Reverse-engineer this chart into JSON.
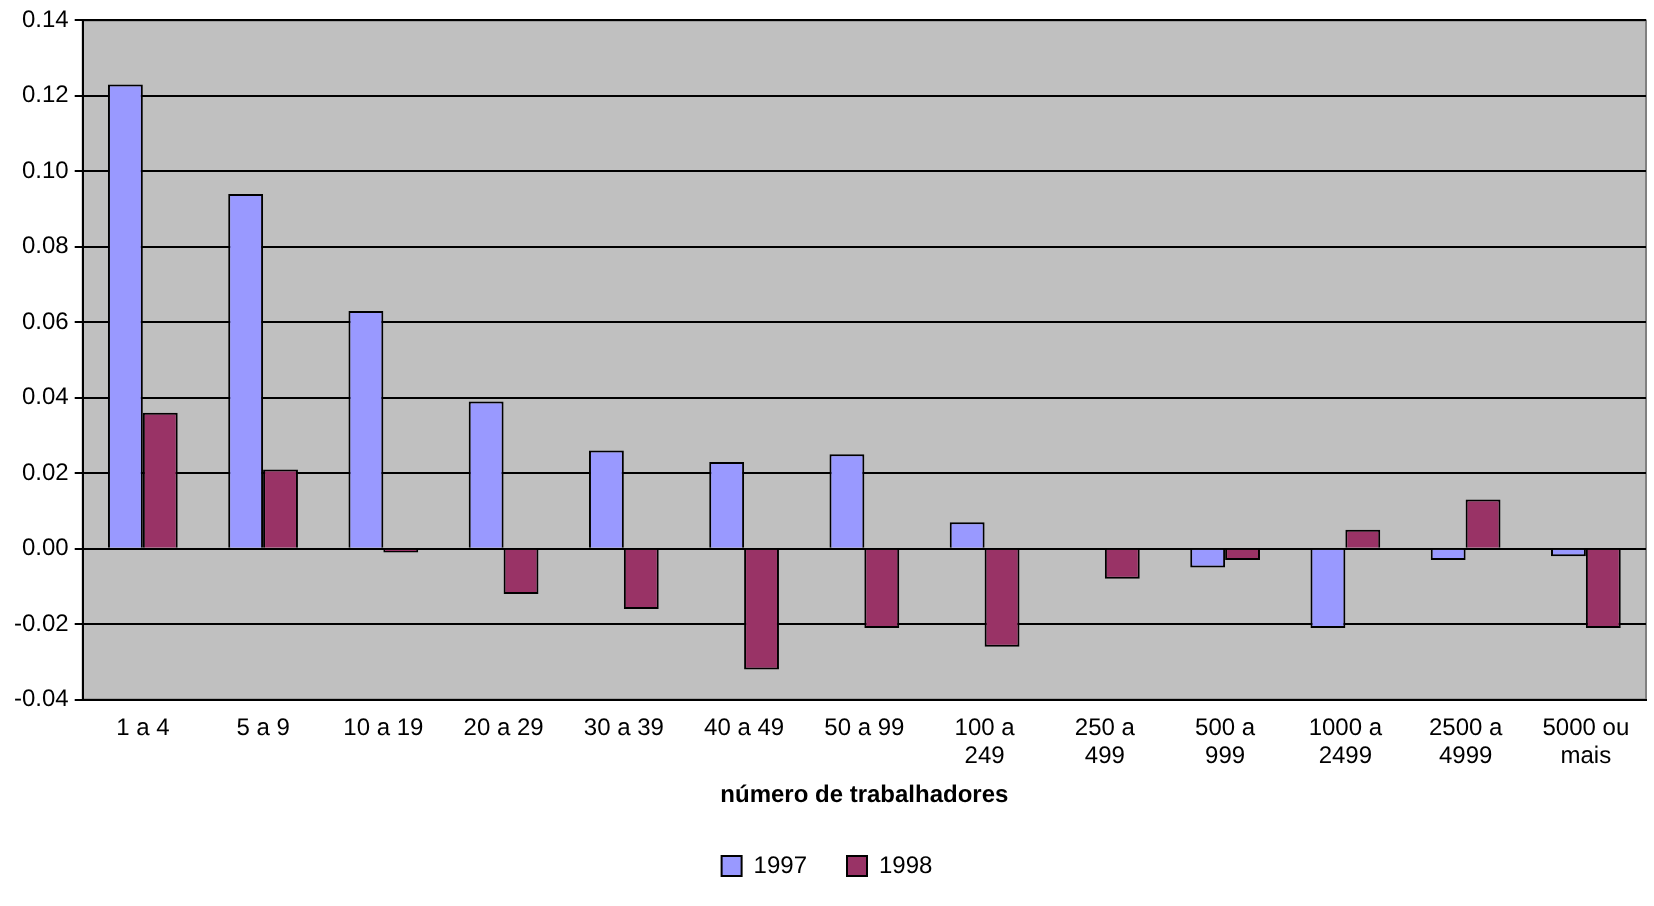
{
  "chart_data": {
    "type": "bar",
    "xlabel": "número de trabalhadores",
    "categories": [
      "1 a 4",
      "5 a 9",
      "10 a 19",
      "20 a 29",
      "30 a 39",
      "40 a 49",
      "50 a 99",
      "100 a 249",
      "250 a 499",
      "500 a 999",
      "1000 a 2499",
      "2500 a 4999",
      "5000 ou mais"
    ],
    "series": [
      {
        "name": "1997",
        "color": "#9999ff",
        "values": [
          0.123,
          0.094,
          0.063,
          0.039,
          0.026,
          0.023,
          0.025,
          0.007,
          0,
          -0.005,
          -0.021,
          -0.003,
          -0.002
        ]
      },
      {
        "name": "1998",
        "color": "#993366",
        "values": [
          0.036,
          0.021,
          -0.001,
          -0.012,
          -0.016,
          -0.032,
          -0.021,
          -0.026,
          -0.008,
          -0.003,
          0.005,
          0.013,
          -0.021
        ]
      }
    ],
    "ylim": [
      -0.04,
      0.14
    ],
    "yticks": [
      -0.04,
      -0.02,
      {
        "value": 0,
        "label": "0.00"
      },
      0.02,
      0.04,
      0.06,
      0.08,
      {
        "value": 0.1,
        "label": "0.10"
      },
      0.12,
      0.14
    ],
    "grid": "y",
    "legend": "bottom"
  }
}
